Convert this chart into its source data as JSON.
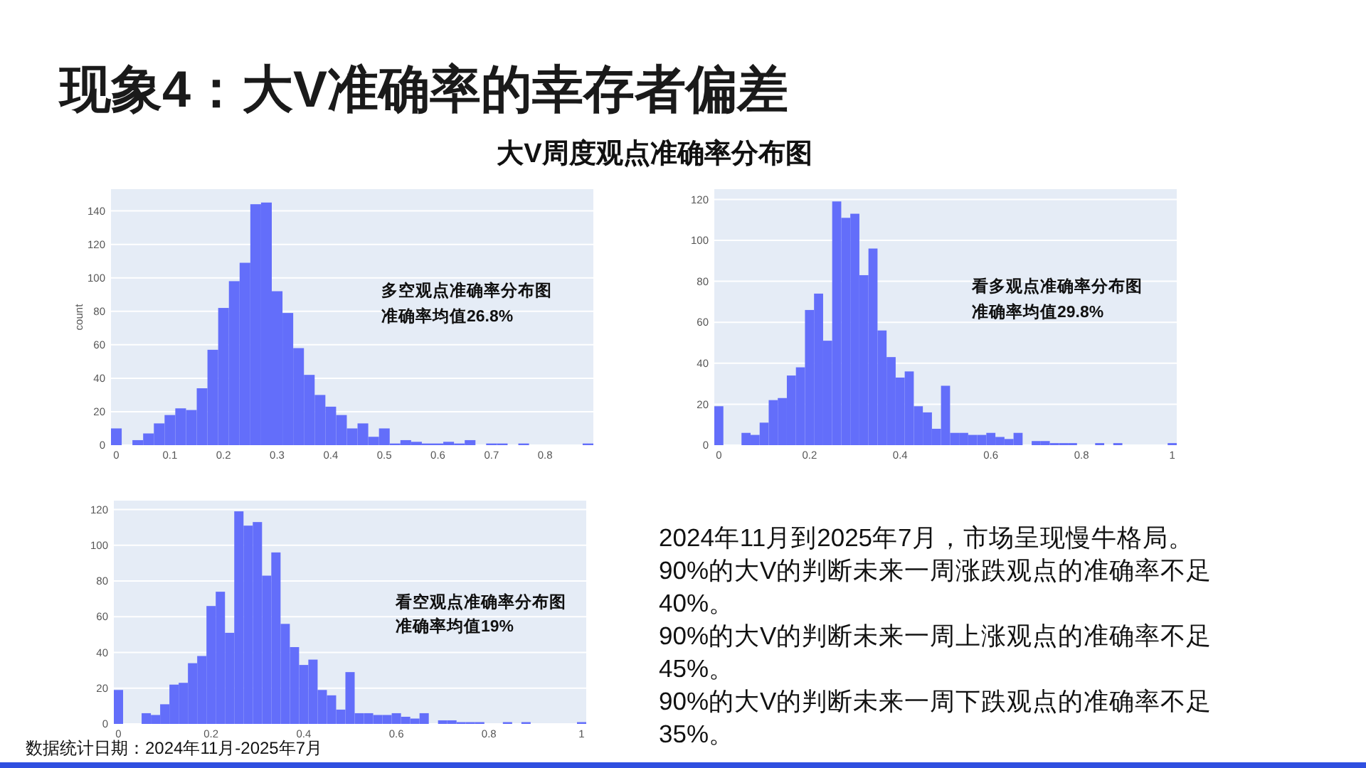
{
  "chart_data": [
    {
      "type": "histogram",
      "title": "现象4：大V准确率的幸存者偏差",
      "subtitle": "大V周度观点准确率分布图",
      "ylabel": "count",
      "color": "#636efa",
      "grid": "y",
      "bins": [
        -0.01,
        0.01,
        0.03,
        0.05,
        0.07,
        0.09,
        0.11,
        0.13,
        0.15,
        0.17,
        0.19,
        0.21,
        0.23,
        0.25,
        0.27,
        0.29,
        0.31,
        0.33,
        0.35,
        0.37,
        0.39,
        0.41,
        0.43,
        0.45,
        0.47,
        0.49,
        0.51,
        0.53,
        0.55,
        0.57,
        0.59,
        0.61,
        0.63,
        0.65,
        0.67,
        0.69,
        0.71,
        0.73,
        0.75,
        0.77,
        0.79,
        0.81,
        0.83,
        0.85,
        0.87,
        0.89
      ],
      "values": [
        10,
        0,
        3,
        7,
        13,
        18,
        22,
        21,
        34,
        57,
        82,
        98,
        109,
        144,
        145,
        92,
        79,
        58,
        42,
        30,
        23,
        18,
        10,
        13,
        5,
        10,
        1,
        3,
        2,
        1,
        1,
        2,
        1,
        3,
        0,
        1,
        1,
        0,
        1,
        0,
        0,
        0,
        0,
        0,
        1
      ],
      "xlim": [
        -0.01,
        0.89
      ],
      "ylim": [
        0,
        153
      ],
      "xticks": [
        0,
        0.1,
        0.2,
        0.3,
        0.4,
        0.5,
        0.6,
        0.7,
        0.8
      ],
      "yticks": [
        0,
        20,
        40,
        60,
        80,
        100,
        120,
        140
      ],
      "annotations": [
        "多空观点准确率分布图",
        "准确率均值26.8%"
      ]
    },
    {
      "type": "histogram",
      "color": "#636efa",
      "grid": "y",
      "bins": [
        -0.01,
        0.01,
        0.03,
        0.05,
        0.07,
        0.09,
        0.11,
        0.13,
        0.15,
        0.17,
        0.19,
        0.21,
        0.23,
        0.25,
        0.27,
        0.29,
        0.31,
        0.33,
        0.35,
        0.37,
        0.39,
        0.41,
        0.43,
        0.45,
        0.47,
        0.49,
        0.51,
        0.53,
        0.55,
        0.57,
        0.59,
        0.61,
        0.63,
        0.65,
        0.67,
        0.69,
        0.71,
        0.73,
        0.75,
        0.77,
        0.79,
        0.81,
        0.83,
        0.85,
        0.87,
        0.89,
        0.91,
        0.93,
        0.95,
        0.97,
        0.99,
        1.01
      ],
      "values": [
        19,
        0,
        0,
        6,
        5,
        11,
        22,
        23,
        34,
        38,
        66,
        74,
        51,
        119,
        111,
        113,
        83,
        96,
        56,
        43,
        33,
        36,
        19,
        16,
        8,
        29,
        6,
        6,
        5,
        5,
        6,
        4,
        3,
        6,
        0,
        2,
        2,
        1,
        1,
        1,
        0,
        0,
        1,
        0,
        1,
        0,
        0,
        0,
        0,
        0,
        1
      ],
      "xlim": [
        -0.01,
        1.01
      ],
      "ylim": [
        0,
        125
      ],
      "xticks": [
        0,
        0.2,
        0.4,
        0.6,
        0.8,
        1
      ],
      "yticks": [
        0,
        20,
        40,
        60,
        80,
        100,
        120
      ],
      "annotations": [
        "看多观点准确率分布图",
        "准确率均值29.8%"
      ]
    },
    {
      "type": "histogram",
      "color": "#636efa",
      "grid": "y",
      "bins": [
        -0.01,
        0.01,
        0.03,
        0.05,
        0.07,
        0.09,
        0.11,
        0.13,
        0.15,
        0.17,
        0.19,
        0.21,
        0.23,
        0.25,
        0.27,
        0.29,
        0.31,
        0.33,
        0.35,
        0.37,
        0.39,
        0.41,
        0.43,
        0.45,
        0.47,
        0.49,
        0.51,
        0.53,
        0.55,
        0.57,
        0.59,
        0.61,
        0.63,
        0.65,
        0.67,
        0.69,
        0.71,
        0.73,
        0.75,
        0.77,
        0.79,
        0.81,
        0.83,
        0.85,
        0.87,
        0.89,
        0.91,
        0.93,
        0.95,
        0.97,
        0.99,
        1.01
      ],
      "values": [
        19,
        0,
        0,
        6,
        5,
        11,
        22,
        23,
        34,
        38,
        66,
        74,
        51,
        119,
        111,
        113,
        83,
        96,
        56,
        43,
        33,
        36,
        19,
        16,
        8,
        29,
        6,
        6,
        5,
        5,
        6,
        4,
        3,
        6,
        0,
        2,
        2,
        1,
        1,
        1,
        0,
        0,
        1,
        0,
        1,
        0,
        0,
        0,
        0,
        0,
        1
      ],
      "xlim": [
        -0.01,
        1.01
      ],
      "ylim": [
        0,
        125
      ],
      "xticks": [
        0,
        0.2,
        0.4,
        0.6,
        0.8,
        1
      ],
      "yticks": [
        0,
        20,
        40,
        60,
        80,
        100,
        120
      ],
      "annotations": [
        "看空观点准确率分布图",
        "准确率均值19%",
        "数据统计日期：2024年11月-2025年7月"
      ]
    },
    {
      "type": "other",
      "annotations": [
        "2024年11月到2025年7月，市场呈现慢牛格局。",
        "90%的大V的判断未来一周涨跌观点的准确率不足40%。",
        "90%的大V的判断未来一周上涨观点的准确率不足45%。",
        "90%的大V的判断未来一周下跌观点的准确率不足35%。"
      ]
    }
  ]
}
